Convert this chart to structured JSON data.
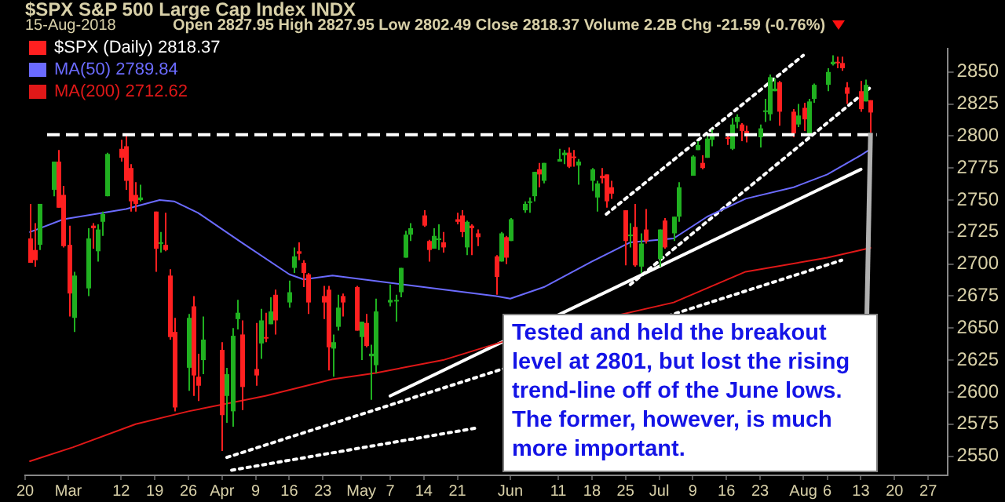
{
  "chart_data": {
    "type": "candlestick",
    "title": "$SPX S&P 500 Large Cap Index INDX",
    "subtitle": "15-Aug-2018",
    "annotations": [
      "Open 2827.95 High 2827.95 Low 2802.49 Close 2818.37 Volume 2.2B Chg -21.59 (-0.76%)",
      {
        "text": "Tested and held the breakout level at 2801, but lost the rising trend-line off of the June lows. The former, however, is much more important.",
        "x": "2018-08-15",
        "y": 2802.49
      }
    ],
    "xlim": [
      "2018-02-20",
      "2018-08-31"
    ],
    "xticks": [
      {
        "value": "2018-02-20",
        "label": "20"
      },
      {
        "value": "2018-03-01",
        "label": "Mar"
      },
      {
        "value": "2018-03-12",
        "label": "12"
      },
      {
        "value": "2018-03-19",
        "label": "19"
      },
      {
        "value": "2018-03-26",
        "label": "26"
      },
      {
        "value": "2018-04-02",
        "label": "Apr"
      },
      {
        "value": "2018-04-09",
        "label": "9"
      },
      {
        "value": "2018-04-16",
        "label": "16"
      },
      {
        "value": "2018-04-23",
        "label": "23"
      },
      {
        "value": "2018-05-01",
        "label": "May"
      },
      {
        "value": "2018-05-07",
        "label": "7"
      },
      {
        "value": "2018-05-14",
        "label": "14"
      },
      {
        "value": "2018-05-21",
        "label": "21"
      },
      {
        "value": "2018-06-01",
        "label": "Jun"
      },
      {
        "value": "2018-06-11",
        "label": "11"
      },
      {
        "value": "2018-06-18",
        "label": "18"
      },
      {
        "value": "2018-06-25",
        "label": "25"
      },
      {
        "value": "2018-07-02",
        "label": "Jul"
      },
      {
        "value": "2018-07-09",
        "label": "9"
      },
      {
        "value": "2018-07-16",
        "label": "16"
      },
      {
        "value": "2018-07-23",
        "label": "23"
      },
      {
        "value": "2018-08-01",
        "label": "Aug"
      },
      {
        "value": "2018-08-06",
        "label": "6"
      },
      {
        "value": "2018-08-13",
        "label": "13"
      },
      {
        "value": "2018-08-20",
        "label": "20"
      },
      {
        "value": "2018-08-27",
        "label": "27"
      }
    ],
    "ylim": [
      2535,
      2868
    ],
    "yticks": [
      2550,
      2575,
      2600,
      2625,
      2650,
      2675,
      2700,
      2725,
      2750,
      2775,
      2800,
      2825,
      2850
    ],
    "legend": "top left",
    "ref_lines": [
      {
        "axis": "y",
        "value": 2801,
        "color": "#ffffff",
        "line_style": "dashed"
      }
    ],
    "series": [
      {
        "name": "$SPX (Daily) 2818.37",
        "x": [
          "2018-02-21",
          "2018-02-22",
          "2018-02-23",
          "2018-02-26",
          "2018-02-27",
          "2018-02-28",
          "2018-03-01",
          "2018-03-02",
          "2018-03-05",
          "2018-03-06",
          "2018-03-07",
          "2018-03-08",
          "2018-03-09",
          "2018-03-12",
          "2018-03-13",
          "2018-03-14",
          "2018-03-15",
          "2018-03-16",
          "2018-03-19",
          "2018-03-20",
          "2018-03-21",
          "2018-03-22",
          "2018-03-23",
          "2018-03-26",
          "2018-03-27",
          "2018-03-28",
          "2018-03-29",
          "2018-04-02",
          "2018-04-03",
          "2018-04-04",
          "2018-04-05",
          "2018-04-06",
          "2018-04-09",
          "2018-04-10",
          "2018-04-11",
          "2018-04-12",
          "2018-04-13",
          "2018-04-16",
          "2018-04-17",
          "2018-04-18",
          "2018-04-19",
          "2018-04-20",
          "2018-04-23",
          "2018-04-24",
          "2018-04-25",
          "2018-04-26",
          "2018-04-27",
          "2018-04-30",
          "2018-05-01",
          "2018-05-02",
          "2018-05-03",
          "2018-05-04",
          "2018-05-07",
          "2018-05-08",
          "2018-05-09",
          "2018-05-10",
          "2018-05-11",
          "2018-05-14",
          "2018-05-15",
          "2018-05-16",
          "2018-05-17",
          "2018-05-18",
          "2018-05-21",
          "2018-05-22",
          "2018-05-23",
          "2018-05-24",
          "2018-05-25",
          "2018-05-29",
          "2018-05-30",
          "2018-05-31",
          "2018-06-01",
          "2018-06-04",
          "2018-06-05",
          "2018-06-06",
          "2018-06-07",
          "2018-06-08",
          "2018-06-11",
          "2018-06-12",
          "2018-06-13",
          "2018-06-14",
          "2018-06-15",
          "2018-06-18",
          "2018-06-19",
          "2018-06-20",
          "2018-06-21",
          "2018-06-22",
          "2018-06-25",
          "2018-06-26",
          "2018-06-27",
          "2018-06-28",
          "2018-06-29",
          "2018-07-02",
          "2018-07-03",
          "2018-07-05",
          "2018-07-06",
          "2018-07-09",
          "2018-07-10",
          "2018-07-11",
          "2018-07-12",
          "2018-07-13",
          "2018-07-16",
          "2018-07-17",
          "2018-07-18",
          "2018-07-19",
          "2018-07-20",
          "2018-07-23",
          "2018-07-24",
          "2018-07-25",
          "2018-07-26",
          "2018-07-27",
          "2018-07-30",
          "2018-07-31",
          "2018-08-01",
          "2018-08-02",
          "2018-08-03",
          "2018-08-06",
          "2018-08-07",
          "2018-08-08",
          "2018-08-09",
          "2018-08-10",
          "2018-08-13",
          "2018-08-14",
          "2018-08-15"
        ],
        "ohlc": [
          [
            2720,
            2747,
            2701,
            2701
          ],
          [
            2711,
            2732,
            2698,
            2703
          ],
          [
            2715,
            2747,
            2711,
            2747
          ],
          [
            2758,
            2780,
            2753,
            2780
          ],
          [
            2780,
            2789,
            2744,
            2744
          ],
          [
            2754,
            2761,
            2713,
            2714
          ],
          [
            2715,
            2730,
            2659,
            2677
          ],
          [
            2658,
            2694,
            2647,
            2691
          ],
          [
            2681,
            2728,
            2675,
            2720
          ],
          [
            2730,
            2732,
            2712,
            2728
          ],
          [
            2710,
            2731,
            2702,
            2727
          ],
          [
            2733,
            2741,
            2722,
            2739
          ],
          [
            2753,
            2787,
            2753,
            2786
          ],
          [
            2790,
            2797,
            2780,
            2783
          ],
          [
            2792,
            2801,
            2758,
            2765
          ],
          [
            2775,
            2778,
            2741,
            2749
          ],
          [
            2754,
            2764,
            2741,
            2747
          ],
          [
            2750,
            2762,
            2749,
            2752
          ],
          [
            2741,
            2741,
            2694,
            2712
          ],
          [
            2716,
            2725,
            2709,
            2717
          ],
          [
            2715,
            2740,
            2710,
            2711
          ],
          [
            2691,
            2696,
            2641,
            2643
          ],
          [
            2647,
            2658,
            2585,
            2588
          ],
          [
            2619,
            2661,
            2601,
            2658
          ],
          [
            2667,
            2675,
            2597,
            2613
          ],
          [
            2612,
            2630,
            2593,
            2605
          ],
          [
            2625,
            2659,
            2614,
            2641
          ],
          [
            2633,
            2639,
            2554,
            2582
          ],
          [
            2597,
            2619,
            2576,
            2614
          ],
          [
            2585,
            2650,
            2573,
            2644
          ],
          [
            2657,
            2672,
            2649,
            2662
          ],
          [
            2645,
            2656,
            2586,
            2604
          ],
          [
            2618,
            2654,
            2605,
            2613
          ],
          [
            2638,
            2665,
            2626,
            2656
          ],
          [
            2643,
            2662,
            2639,
            2642
          ],
          [
            2653,
            2674,
            2653,
            2663
          ],
          [
            2676,
            2680,
            2645,
            2656
          ],
          [
            2670,
            2687,
            2666,
            2678
          ],
          [
            2697,
            2713,
            2693,
            2706
          ],
          [
            2710,
            2717,
            2703,
            2708
          ],
          [
            2701,
            2703,
            2682,
            2693
          ],
          [
            2692,
            2693,
            2661,
            2670
          ],
          [
            2675,
            2683,
            2657,
            2670
          ],
          [
            2680,
            2683,
            2617,
            2635
          ],
          [
            2634,
            2645,
            2612,
            2639
          ],
          [
            2651,
            2676,
            2648,
            2666
          ],
          [
            2675,
            2677,
            2659,
            2670
          ],
          [
            2682,
            2683,
            2648,
            2648
          ],
          [
            2643,
            2655,
            2625,
            2655
          ],
          [
            2654,
            2661,
            2635,
            2636
          ],
          [
            2628,
            2637,
            2594,
            2630
          ],
          [
            2621,
            2673,
            2615,
            2663
          ],
          [
            2670,
            2684,
            2667,
            2672
          ],
          [
            2671,
            2676,
            2655,
            2672
          ],
          [
            2678,
            2697,
            2674,
            2697
          ],
          [
            2705,
            2726,
            2705,
            2723
          ],
          [
            2723,
            2732,
            2718,
            2728
          ],
          [
            2738,
            2742,
            2729,
            2730
          ],
          [
            2718,
            2719,
            2702,
            2711
          ],
          [
            2712,
            2728,
            2712,
            2722
          ],
          [
            2720,
            2731,
            2711,
            2720
          ],
          [
            2717,
            2725,
            2709,
            2713
          ],
          [
            2735,
            2740,
            2731,
            2733
          ],
          [
            2738,
            2742,
            2721,
            2725
          ],
          [
            2713,
            2734,
            2707,
            2733
          ],
          [
            2730,
            2731,
            2707,
            2728
          ],
          [
            2724,
            2727,
            2714,
            2721
          ],
          [
            2706,
            2707,
            2676,
            2690
          ],
          [
            2702,
            2725,
            2702,
            2724
          ],
          [
            2721,
            2722,
            2700,
            2705
          ],
          [
            2718,
            2736,
            2718,
            2735
          ],
          [
            2742,
            2749,
            2740,
            2747
          ],
          [
            2748,
            2752,
            2740,
            2749
          ],
          [
            2753,
            2772,
            2749,
            2772
          ],
          [
            2774,
            2779,
            2760,
            2770
          ],
          [
            2765,
            2779,
            2763,
            2779
          ],
          [
            2780,
            2790,
            2780,
            2782
          ],
          [
            2785,
            2789,
            2778,
            2787
          ],
          [
            2787,
            2791,
            2775,
            2776
          ],
          [
            2784,
            2789,
            2776,
            2783
          ],
          [
            2777,
            2782,
            2762,
            2780
          ],
          [
            2765,
            2775,
            2757,
            2774
          ],
          [
            2752,
            2765,
            2741,
            2763
          ],
          [
            2769,
            2775,
            2763,
            2767
          ],
          [
            2770,
            2770,
            2744,
            2749
          ],
          [
            2760,
            2765,
            2751,
            2755
          ],
          [
            2742,
            2742,
            2699,
            2718
          ],
          [
            2722,
            2732,
            2713,
            2723
          ],
          [
            2729,
            2747,
            2698,
            2699
          ],
          [
            2698,
            2724,
            2693,
            2716
          ],
          [
            2727,
            2743,
            2716,
            2718
          ],
          [
            2704,
            2727,
            2698,
            2727
          ],
          [
            2734,
            2736,
            2712,
            2713
          ],
          [
            2724,
            2737,
            2718,
            2737
          ],
          [
            2737,
            2764,
            2733,
            2760
          ],
          [
            2769,
            2785,
            2769,
            2784
          ],
          [
            2789,
            2796,
            2789,
            2793
          ],
          [
            2779,
            2785,
            2774,
            2775
          ],
          [
            2783,
            2800,
            2783,
            2798
          ],
          [
            2797,
            2805,
            2792,
            2801
          ],
          [
            2799,
            2801,
            2793,
            2798
          ],
          [
            2790,
            2814,
            2789,
            2809
          ],
          [
            2811,
            2817,
            2806,
            2815
          ],
          [
            2809,
            2810,
            2796,
            2804
          ],
          [
            2804,
            2808,
            2795,
            2802
          ],
          [
            2799,
            2809,
            2791,
            2806
          ],
          [
            2820,
            2829,
            2811,
            2820
          ],
          [
            2817,
            2848,
            2812,
            2846
          ],
          [
            2835,
            2845,
            2835,
            2837
          ],
          [
            2842,
            2843,
            2808,
            2819
          ],
          [
            2819,
            2821,
            2799,
            2802
          ],
          [
            2809,
            2825,
            2807,
            2816
          ],
          [
            2822,
            2826,
            2804,
            2813
          ],
          [
            2801,
            2829,
            2800,
            2827
          ],
          [
            2829,
            2841,
            2826,
            2840
          ],
          [
            2840,
            2853,
            2835,
            2850
          ],
          [
            2856,
            2863,
            2855,
            2858
          ],
          [
            2858,
            2862,
            2853,
            2857
          ],
          [
            2857,
            2862,
            2851,
            2853
          ],
          [
            2838,
            2842,
            2825,
            2833
          ],
          [
            2835,
            2843,
            2819,
            2821
          ],
          [
            2827,
            2844,
            2827,
            2840
          ],
          [
            2827.95,
            2827.95,
            2802.49,
            2818.37
          ]
        ],
        "colors": [
          "#ff2020",
          "#ff2020",
          "#20b020",
          "#20b020",
          "#ff2020",
          "#ff2020",
          "#ff2020",
          "#20b020",
          "#20b020",
          "#ff2020",
          "#20b020",
          "#20b020",
          "#20b020",
          "#ff2020",
          "#ff2020",
          "#ff2020",
          "#ff2020",
          "#20b020",
          "#ff2020",
          "#20b020",
          "#ff2020",
          "#ff2020",
          "#ff2020",
          "#20b020",
          "#ff2020",
          "#ff2020",
          "#20b020",
          "#ff2020",
          "#20b020",
          "#20b020",
          "#20b020",
          "#ff2020",
          "#ff2020",
          "#20b020",
          "#ff2020",
          "#20b020",
          "#ff2020",
          "#20b020",
          "#20b020",
          "#ff2020",
          "#ff2020",
          "#ff2020",
          "#ff2020",
          "#ff2020",
          "#20b020",
          "#20b020",
          "#ff2020",
          "#ff2020",
          "#20b020",
          "#ff2020",
          "#20b020",
          "#20b020",
          "#20b020",
          "#20b020",
          "#20b020",
          "#20b020",
          "#20b020",
          "#ff2020",
          "#ff2020",
          "#20b020",
          "#20b020",
          "#ff2020",
          "#ff2020",
          "#ff2020",
          "#20b020",
          "#ff2020",
          "#ff2020",
          "#ff2020",
          "#20b020",
          "#ff2020",
          "#20b020",
          "#20b020",
          "#20b020",
          "#20b020",
          "#ff2020",
          "#20b020",
          "#20b020",
          "#20b020",
          "#ff2020",
          "#ff2020",
          "#20b020",
          "#20b020",
          "#20b020",
          "#ff2020",
          "#ff2020",
          "#ff2020",
          "#ff2020",
          "#20b020",
          "#ff2020",
          "#20b020",
          "#ff2020",
          "#20b020",
          "#ff2020",
          "#20b020",
          "#20b020",
          "#20b020",
          "#20b020",
          "#ff2020",
          "#20b020",
          "#20b020",
          "#ff2020",
          "#20b020",
          "#20b020",
          "#ff2020",
          "#ff2020",
          "#20b020",
          "#20b020",
          "#20b020",
          "#20b020",
          "#ff2020",
          "#ff2020",
          "#20b020",
          "#ff2020",
          "#20b020",
          "#20b020",
          "#20b020",
          "#20b020",
          "#ff2020",
          "#ff2020",
          "#ff2020",
          "#ff2020",
          "#20b020",
          "#ff2020"
        ]
      },
      {
        "name": "MA(50) 2789.84",
        "type": "line",
        "color": "#6b6bff",
        "x": [
          "2018-02-21",
          "2018-02-28",
          "2018-03-13",
          "2018-03-20",
          "2018-03-23",
          "2018-03-28",
          "2018-04-06",
          "2018-04-16",
          "2018-04-19",
          "2018-04-25",
          "2018-05-14",
          "2018-05-29",
          "2018-06-01",
          "2018-06-08",
          "2018-06-18",
          "2018-06-26",
          "2018-07-05",
          "2018-07-12",
          "2018-07-20",
          "2018-07-30",
          "2018-08-06",
          "2018-08-13",
          "2018-08-15"
        ],
        "values": [
          2725,
          2735,
          2743,
          2750,
          2749,
          2740,
          2717,
          2692,
          2688,
          2691,
          2682,
          2675,
          2673,
          2682,
          2702,
          2717,
          2720,
          2737,
          2751,
          2760,
          2770,
          2785,
          2789.84
        ]
      },
      {
        "name": "MA(200) 2712.62",
        "type": "line",
        "color": "#e01818",
        "x": [
          "2018-02-21",
          "2018-03-02",
          "2018-03-15",
          "2018-03-26",
          "2018-04-11",
          "2018-04-25",
          "2018-05-04",
          "2018-05-18",
          "2018-05-31",
          "2018-07-05",
          "2018-07-20",
          "2018-08-06",
          "2018-08-15"
        ],
        "values": [
          2546,
          2557,
          2575,
          2585,
          2597,
          2610,
          2615,
          2625,
          2640,
          2670,
          2694,
          2705,
          2712.62
        ]
      },
      {
        "type": "line",
        "color": "#ffffff",
        "line_style": "solid",
        "x": [
          "2018-05-07",
          "2018-08-13"
        ],
        "values": [
          2597,
          2774
        ]
      },
      {
        "type": "line",
        "color": "#ffffff",
        "line_style": "dotted",
        "x": [
          "2018-06-21",
          "2018-08-01"
        ],
        "values": [
          2739,
          2863
        ]
      },
      {
        "type": "line",
        "color": "#ffffff",
        "line_style": "dotted",
        "x": [
          "2018-06-26",
          "2018-08-15"
        ],
        "values": [
          2684,
          2838
        ]
      },
      {
        "type": "line",
        "color": "#ffffff",
        "line_style": "dotted",
        "x": [
          "2018-04-03",
          "2018-08-09"
        ],
        "values": [
          2549,
          2703
        ]
      },
      {
        "type": "line",
        "color": "#ffffff",
        "line_style": "dotted",
        "x": [
          "2018-04-04",
          "2018-05-25"
        ],
        "values": [
          2539,
          2572
        ]
      }
    ]
  }
}
